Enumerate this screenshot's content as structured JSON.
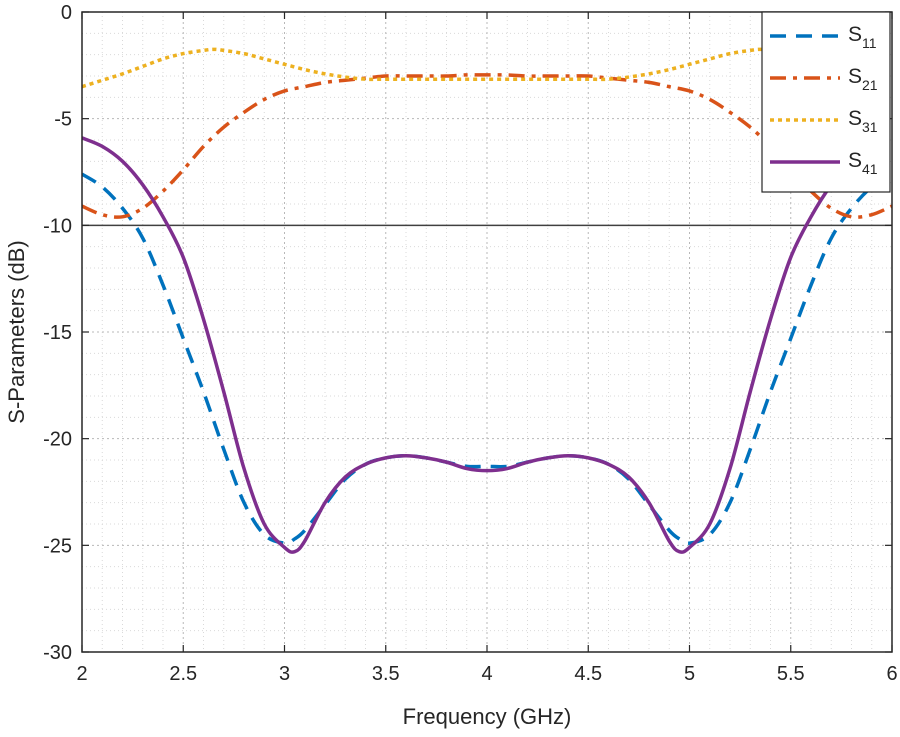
{
  "chart_data": {
    "type": "line",
    "title": "",
    "xlabel": "Frequency (GHz)",
    "ylabel": "S-Parameters (dB)",
    "xlim": [
      2,
      6
    ],
    "ylim": [
      -30,
      0
    ],
    "xticks": [
      2,
      2.5,
      3,
      3.5,
      4,
      4.5,
      5,
      5.5,
      6
    ],
    "xtick_labels": [
      "2",
      "2.5",
      "3",
      "3.5",
      "4",
      "4.5",
      "5",
      "5.5",
      "6"
    ],
    "yticks": [
      0,
      -5,
      -10,
      -15,
      -20,
      -25,
      -30
    ],
    "ytick_labels": [
      "0",
      "-5",
      "-10",
      "-15",
      "-20",
      "-25",
      "-30"
    ],
    "grid": "major and minor, dotted",
    "reference_line": {
      "y": -10,
      "color": "#404040"
    },
    "legend_position": "top-right",
    "series": [
      {
        "name": "S11",
        "legend_main": "S",
        "legend_sub": "11",
        "color": "#0072BD",
        "style": "dashed",
        "x": [
          2,
          2.1,
          2.2,
          2.3,
          2.4,
          2.5,
          2.6,
          2.7,
          2.8,
          2.9,
          3.0,
          3.05,
          3.1,
          3.2,
          3.3,
          3.4,
          3.5,
          3.6,
          3.7,
          3.8,
          3.9,
          4.0,
          4.1,
          4.2,
          4.3,
          4.4,
          4.5,
          4.6,
          4.7,
          4.8,
          4.9,
          4.95,
          5.0,
          5.1,
          5.2,
          5.3,
          5.4,
          5.5,
          5.6,
          5.7,
          5.8,
          5.9,
          6.0
        ],
        "y": [
          -7.6,
          -8.2,
          -9.2,
          -10.6,
          -12.8,
          -15.3,
          -17.8,
          -20.5,
          -23.0,
          -24.5,
          -24.9,
          -24.7,
          -24.3,
          -23.1,
          -21.9,
          -21.2,
          -20.9,
          -20.8,
          -20.9,
          -21.1,
          -21.3,
          -21.3,
          -21.3,
          -21.1,
          -20.9,
          -20.8,
          -20.9,
          -21.2,
          -21.9,
          -23.1,
          -24.3,
          -24.7,
          -24.9,
          -24.5,
          -23.0,
          -20.5,
          -17.8,
          -15.3,
          -12.8,
          -10.6,
          -9.2,
          -8.2,
          -7.6
        ]
      },
      {
        "name": "S21",
        "legend_main": "S",
        "legend_sub": "21",
        "color": "#D95319",
        "style": "dash-dot",
        "x": [
          2,
          2.1,
          2.2,
          2.3,
          2.4,
          2.5,
          2.6,
          2.7,
          2.8,
          2.9,
          3.0,
          3.1,
          3.2,
          3.3,
          3.4,
          3.5,
          3.6,
          3.7,
          3.8,
          3.9,
          4.0,
          4.1,
          4.2,
          4.3,
          4.4,
          4.5,
          4.6,
          4.7,
          4.8,
          4.9,
          5.0,
          5.1,
          5.2,
          5.3,
          5.4,
          5.5,
          5.6,
          5.7,
          5.8,
          5.9,
          6.0
        ],
        "y": [
          -9.1,
          -9.5,
          -9.6,
          -9.2,
          -8.4,
          -7.4,
          -6.3,
          -5.4,
          -4.7,
          -4.1,
          -3.7,
          -3.5,
          -3.3,
          -3.2,
          -3.1,
          -3.0,
          -3.0,
          -3.0,
          -3.0,
          -2.95,
          -2.95,
          -2.95,
          -3.0,
          -3.0,
          -3.0,
          -3.0,
          -3.1,
          -3.2,
          -3.3,
          -3.5,
          -3.7,
          -4.1,
          -4.7,
          -5.4,
          -6.3,
          -7.4,
          -8.4,
          -9.2,
          -9.6,
          -9.5,
          -9.1
        ]
      },
      {
        "name": "S31",
        "legend_main": "S",
        "legend_sub": "31",
        "color": "#EDB120",
        "style": "dotted",
        "x": [
          2,
          2.1,
          2.2,
          2.3,
          2.4,
          2.5,
          2.6,
          2.65,
          2.7,
          2.8,
          2.9,
          3.0,
          3.1,
          3.2,
          3.3,
          3.4,
          3.5,
          3.6,
          3.7,
          3.8,
          3.9,
          4.0,
          4.1,
          4.2,
          4.3,
          4.4,
          4.5,
          4.6,
          4.7,
          4.8,
          4.9,
          5.0,
          5.1,
          5.2,
          5.3,
          5.35,
          5.4,
          5.5,
          5.6
        ],
        "y": [
          -3.5,
          -3.2,
          -2.9,
          -2.55,
          -2.2,
          -1.95,
          -1.8,
          -1.75,
          -1.8,
          -1.95,
          -2.2,
          -2.45,
          -2.7,
          -2.9,
          -3.05,
          -3.15,
          -3.15,
          -3.15,
          -3.15,
          -3.15,
          -3.15,
          -3.15,
          -3.15,
          -3.15,
          -3.15,
          -3.15,
          -3.15,
          -3.15,
          -3.05,
          -2.9,
          -2.7,
          -2.45,
          -2.2,
          -1.95,
          -1.8,
          -1.75,
          -1.8,
          -1.95,
          -2.2
        ]
      },
      {
        "name": "S41",
        "legend_main": "S",
        "legend_sub": "41",
        "color": "#7E2F8E",
        "style": "solid",
        "x": [
          2,
          2.1,
          2.2,
          2.3,
          2.4,
          2.5,
          2.6,
          2.7,
          2.8,
          2.9,
          3.0,
          3.05,
          3.1,
          3.2,
          3.3,
          3.4,
          3.5,
          3.6,
          3.7,
          3.8,
          3.9,
          4.0,
          4.1,
          4.2,
          4.3,
          4.4,
          4.5,
          4.6,
          4.7,
          4.8,
          4.9,
          4.95,
          5.0,
          5.1,
          5.2,
          5.3,
          5.4,
          5.5,
          5.6,
          5.7,
          5.8
        ],
        "y": [
          -5.9,
          -6.3,
          -7.0,
          -8.1,
          -9.6,
          -11.5,
          -14.4,
          -17.8,
          -21.4,
          -24.0,
          -25.1,
          -25.3,
          -24.8,
          -23.0,
          -21.8,
          -21.2,
          -20.9,
          -20.8,
          -20.9,
          -21.1,
          -21.4,
          -21.5,
          -21.4,
          -21.1,
          -20.9,
          -20.8,
          -20.9,
          -21.2,
          -21.8,
          -23.0,
          -24.8,
          -25.3,
          -25.1,
          -24.0,
          -21.4,
          -17.8,
          -14.4,
          -11.5,
          -9.6,
          -8.1,
          -7.0
        ]
      }
    ]
  }
}
